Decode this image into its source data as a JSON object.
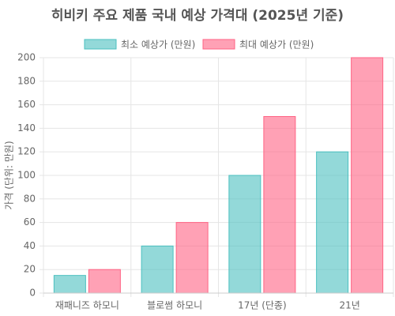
{
  "chart_data": {
    "type": "bar",
    "title": "히비키 주요 제품 국내 예상 가격대 (2025년 기준)",
    "y_label": "가격 (단위: 만원)",
    "categories": [
      "재패니즈 하모니",
      "블로썸 하모니",
      "17년 (단종)",
      "21년"
    ],
    "series": [
      {
        "name": "최소 예상가 (만원)",
        "color": "#4bc0c0",
        "values": [
          15,
          40,
          100,
          120
        ]
      },
      {
        "name": "최대 예상가 (만원)",
        "color": "#ff6384",
        "values": [
          20,
          60,
          150,
          200
        ]
      }
    ],
    "ylim": [
      0,
      200
    ],
    "yticks": [
      0,
      20,
      40,
      60,
      80,
      100,
      120,
      140,
      160,
      180,
      200
    ],
    "grid": true
  }
}
